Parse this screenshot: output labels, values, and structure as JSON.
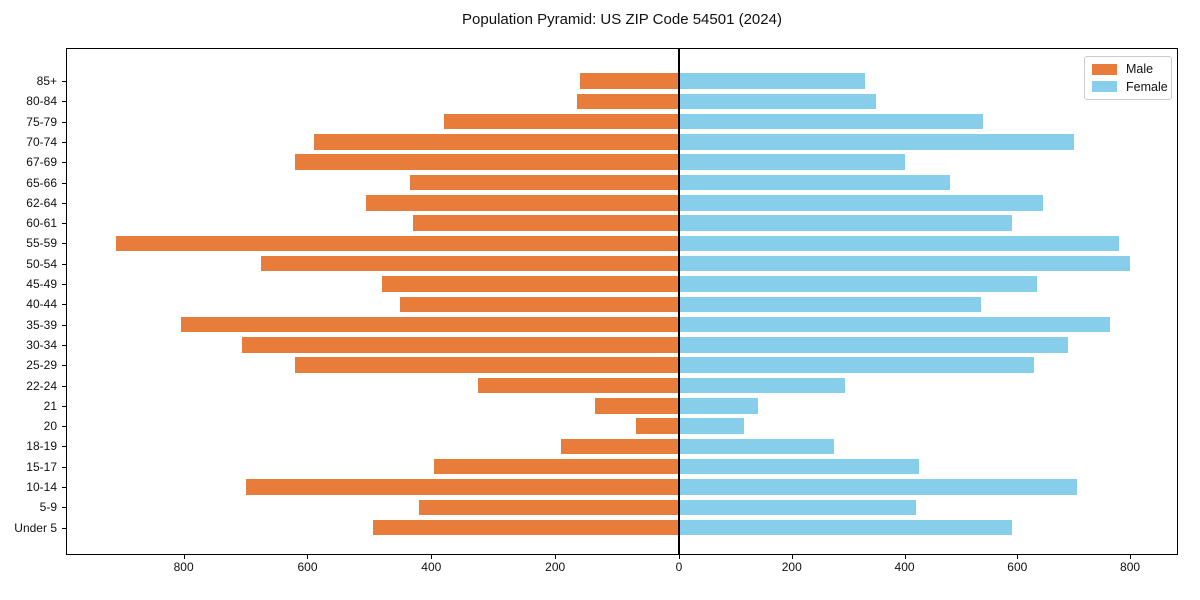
{
  "figure": {
    "title": "Population Pyramid: US ZIP Code 54501 (2024)"
  },
  "legend": {
    "items": [
      {
        "label": "Male",
        "color": "#E87D3B"
      },
      {
        "label": "Female",
        "color": "#87CEEB"
      }
    ]
  },
  "colors": {
    "male": "#E87D3B",
    "female": "#87CEEB",
    "axis": "#000000",
    "zero_line": "#000000",
    "legend_border": "#CCCCCC",
    "background": "#FFFFFF"
  },
  "chart_data": {
    "type": "bar",
    "variant": "population-pyramid",
    "title": "Population Pyramid: US ZIP Code 54501 (2024)",
    "xlabel": "",
    "ylabel": "",
    "grid": false,
    "legend_position": "upper right",
    "categories": [
      "85+",
      "80-84",
      "75-79",
      "70-74",
      "67-69",
      "65-66",
      "62-64",
      "60-61",
      "55-59",
      "50-54",
      "45-49",
      "40-44",
      "35-39",
      "30-34",
      "25-29",
      "22-24",
      "21",
      "20",
      "18-19",
      "15-17",
      "10-14",
      "5-9",
      "Under 5"
    ],
    "series": [
      {
        "name": "Male",
        "side": "left",
        "color": "#E87D3B",
        "values": [
          160,
          165,
          380,
          590,
          620,
          435,
          505,
          430,
          910,
          675,
          480,
          450,
          805,
          705,
          620,
          325,
          135,
          70,
          190,
          395,
          700,
          420,
          495
        ]
      },
      {
        "name": "Female",
        "side": "right",
        "color": "#87CEEB",
        "values": [
          330,
          350,
          540,
          700,
          400,
          480,
          645,
          590,
          780,
          800,
          635,
          535,
          765,
          690,
          630,
          295,
          140,
          115,
          275,
          425,
          705,
          420,
          590
        ]
      }
    ],
    "x_ticks": [
      {
        "value": -800,
        "label": "800"
      },
      {
        "value": -600,
        "label": "600"
      },
      {
        "value": -400,
        "label": "400"
      },
      {
        "value": -200,
        "label": "200"
      },
      {
        "value": 0,
        "label": "0"
      },
      {
        "value": 200,
        "label": "200"
      },
      {
        "value": 400,
        "label": "400"
      },
      {
        "value": 600,
        "label": "600"
      },
      {
        "value": 800,
        "label": "800"
      }
    ],
    "xlim": {
      "left_extent": 990,
      "right_extent": 885
    }
  }
}
